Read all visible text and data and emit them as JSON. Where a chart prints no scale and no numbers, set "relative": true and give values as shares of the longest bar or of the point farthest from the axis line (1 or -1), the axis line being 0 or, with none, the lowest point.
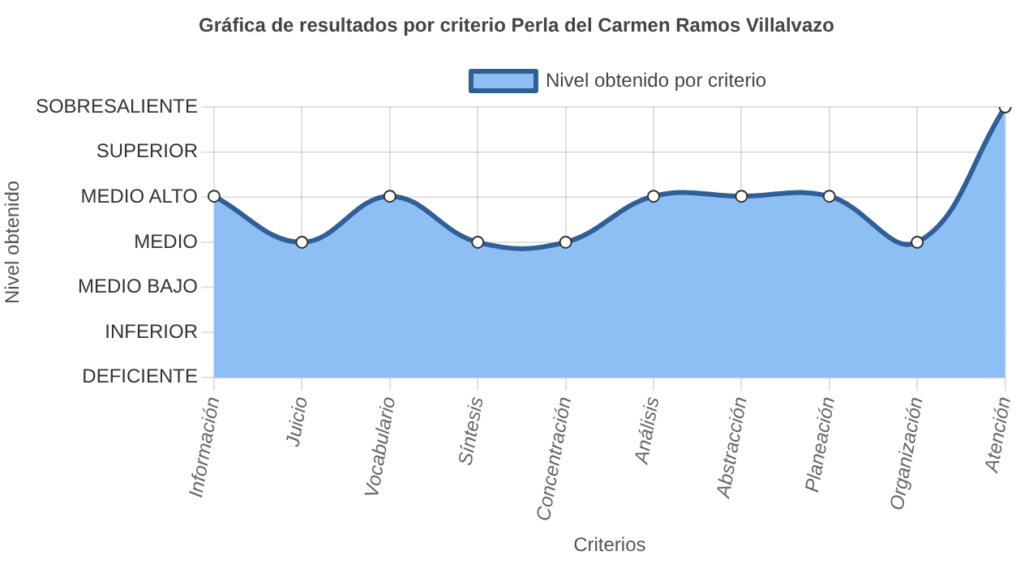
{
  "chart_data": {
    "type": "area",
    "title": "Gráfica de resultados por criterio Perla del Carmen Ramos Villalvazo",
    "xlabel": "Criterios",
    "categories": [
      "Información",
      "Juicio",
      "Vocabulario",
      "Síntesis",
      "Concentración",
      "Análisis",
      "Abstracción",
      "Planeación",
      "Organización",
      "Atención"
    ],
    "relative": true,
    "series": [
      {
        "name": "Nivel obtenido por criterio",
        "color": "#2f5f96",
        "values": [
          0.67,
          0.5,
          0.67,
          0.5,
          0.5,
          0.67,
          0.67,
          0.67,
          0.5,
          1
        ]
      }
    ],
    "annotations": [
      "SOBRESALIENTE",
      "SUPERIOR",
      "MEDIO ALTO",
      "MEDIO",
      "MEDIO BAJO",
      "INFERIOR",
      "DEFICIENTE",
      {
        "text": "Nivel obtenido"
      }
    ],
    "grid": true,
    "legend": "top",
    "marker": "circle",
    "line_style": "solid"
  }
}
